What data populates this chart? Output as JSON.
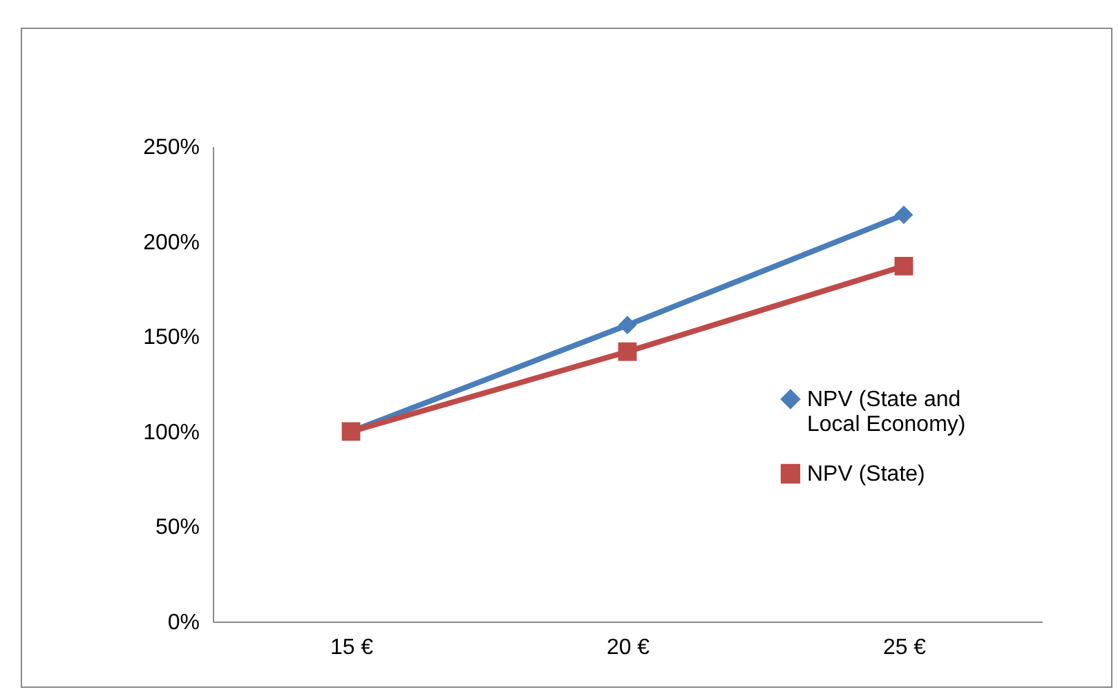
{
  "chart_data": {
    "type": "line",
    "categories": [
      "15 €",
      "20 €",
      "25 €"
    ],
    "series": [
      {
        "name": "NPV (State and Local Economy)",
        "color": "#4a7ebb",
        "marker": "diamond",
        "values": [
          100,
          156,
          214
        ]
      },
      {
        "name": "NPV (State)",
        "color": "#be4b48",
        "marker": "square",
        "values": [
          100,
          142,
          187
        ]
      }
    ],
    "ylim": [
      0,
      250
    ],
    "yticks": [
      {
        "value": 0,
        "label": "0%"
      },
      {
        "value": 50,
        "label": "50%"
      },
      {
        "value": 100,
        "label": "100%"
      },
      {
        "value": 150,
        "label": "150%"
      },
      {
        "value": 200,
        "label": "200%"
      },
      {
        "value": 250,
        "label": "250%"
      }
    ],
    "grid": false,
    "legend": "right",
    "line_style": "solid"
  }
}
